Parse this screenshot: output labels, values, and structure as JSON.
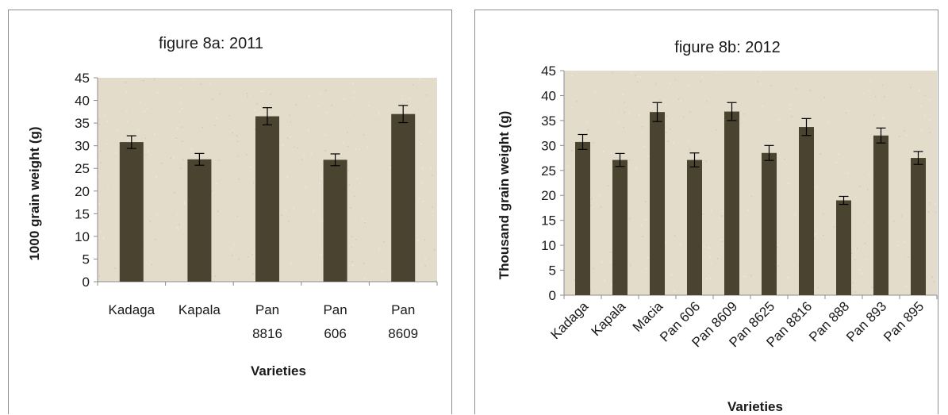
{
  "colors": {
    "bar": "#4a4330",
    "plot_bg": "#e4dccb",
    "axis": "#8c8c8c"
  },
  "chart_data": [
    {
      "type": "bar",
      "title": "figure 8a: 2011",
      "xlabel": "Varieties",
      "ylabel": "1000 grain weight (g)",
      "ylim": [
        0,
        45
      ],
      "yticks": [
        "0",
        "5",
        "10",
        "15",
        "20",
        "25",
        "30",
        "35",
        "40",
        "45"
      ],
      "categories": [
        "Kadaga",
        "Kapala",
        "Pan 8816",
        "Pan 606",
        "Pan 8609"
      ],
      "category_lines": [
        [
          "Kadaga"
        ],
        [
          "Kapala"
        ],
        [
          "Pan",
          "8816"
        ],
        [
          "Pan",
          "606"
        ],
        [
          "Pan",
          "8609"
        ]
      ],
      "values": [
        30.8,
        27.0,
        36.5,
        26.9,
        37.0
      ],
      "error": [
        1.4,
        1.3,
        1.9,
        1.3,
        1.9
      ]
    },
    {
      "type": "bar",
      "title": "figure 8b: 2012",
      "xlabel": "Varieties",
      "ylabel": "Thousand  grain weight (g)",
      "ylim": [
        0,
        45
      ],
      "yticks": [
        "0",
        "5",
        "10",
        "15",
        "20",
        "25",
        "30",
        "35",
        "40",
        "45"
      ],
      "categories": [
        "Kadaga",
        "Kapala",
        "Macia",
        "Pan 606",
        "Pan 8609",
        "Pan 8625",
        "Pan 8816",
        "Pan 888",
        "Pan 893",
        "Pan 895"
      ],
      "values": [
        30.7,
        27.1,
        36.7,
        27.1,
        36.8,
        28.5,
        33.7,
        19.0,
        32.0,
        27.5
      ],
      "error": [
        1.5,
        1.3,
        1.9,
        1.4,
        1.8,
        1.5,
        1.7,
        0.8,
        1.5,
        1.3
      ]
    }
  ]
}
